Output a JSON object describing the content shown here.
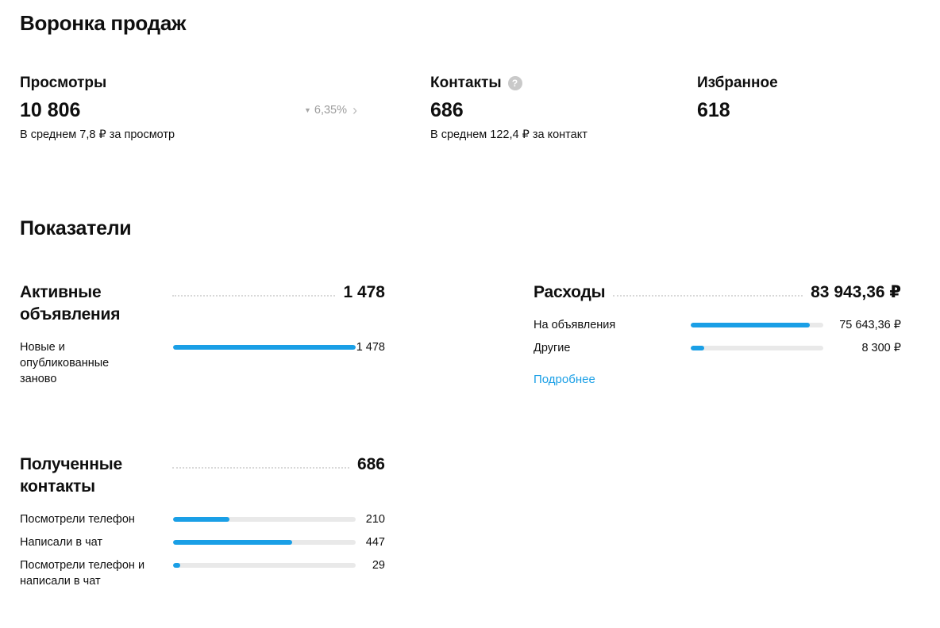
{
  "header": {
    "title": "Воронка продаж"
  },
  "funnel": {
    "views": {
      "label": "Просмотры",
      "value": "10 806",
      "change": "6,35%",
      "sub": "В среднем 7,8 ₽ за просмотр"
    },
    "contacts": {
      "label": "Контакты",
      "value": "686",
      "help": "?",
      "sub": "В среднем 122,4 ₽ за контакт"
    },
    "favorites": {
      "label": "Избранное",
      "value": "618"
    }
  },
  "metrics": {
    "title": "Показатели",
    "active": {
      "title": "Активные объявления",
      "total": "1 478",
      "rows": [
        {
          "label": "Новые и опубликованные заново",
          "value": "1 478",
          "pct": 100
        }
      ]
    },
    "received_contacts": {
      "title": "Полученные контакты",
      "total": "686",
      "rows": [
        {
          "label": "Посмотрели телефон",
          "value": "210",
          "pct": 31
        },
        {
          "label": "Написали в чат",
          "value": "447",
          "pct": 65
        },
        {
          "label": "Посмотрели телефон и написали в чат",
          "value": "29",
          "pct": 4
        }
      ]
    },
    "expenses": {
      "title": "Расходы",
      "total": "83 943,36 ₽",
      "rows": [
        {
          "label": "На объявления",
          "value": "75 643,36 ₽",
          "pct": 90
        },
        {
          "label": "Другие",
          "value": "8 300 ₽",
          "pct": 10
        }
      ],
      "more_label": "Подробнее"
    }
  },
  "colors": {
    "accent": "#1a9fe6",
    "track": "#e9e9e9",
    "link": "#1a9fe6"
  },
  "icons": {
    "down_triangle": "▼",
    "chevron_right": "›"
  }
}
